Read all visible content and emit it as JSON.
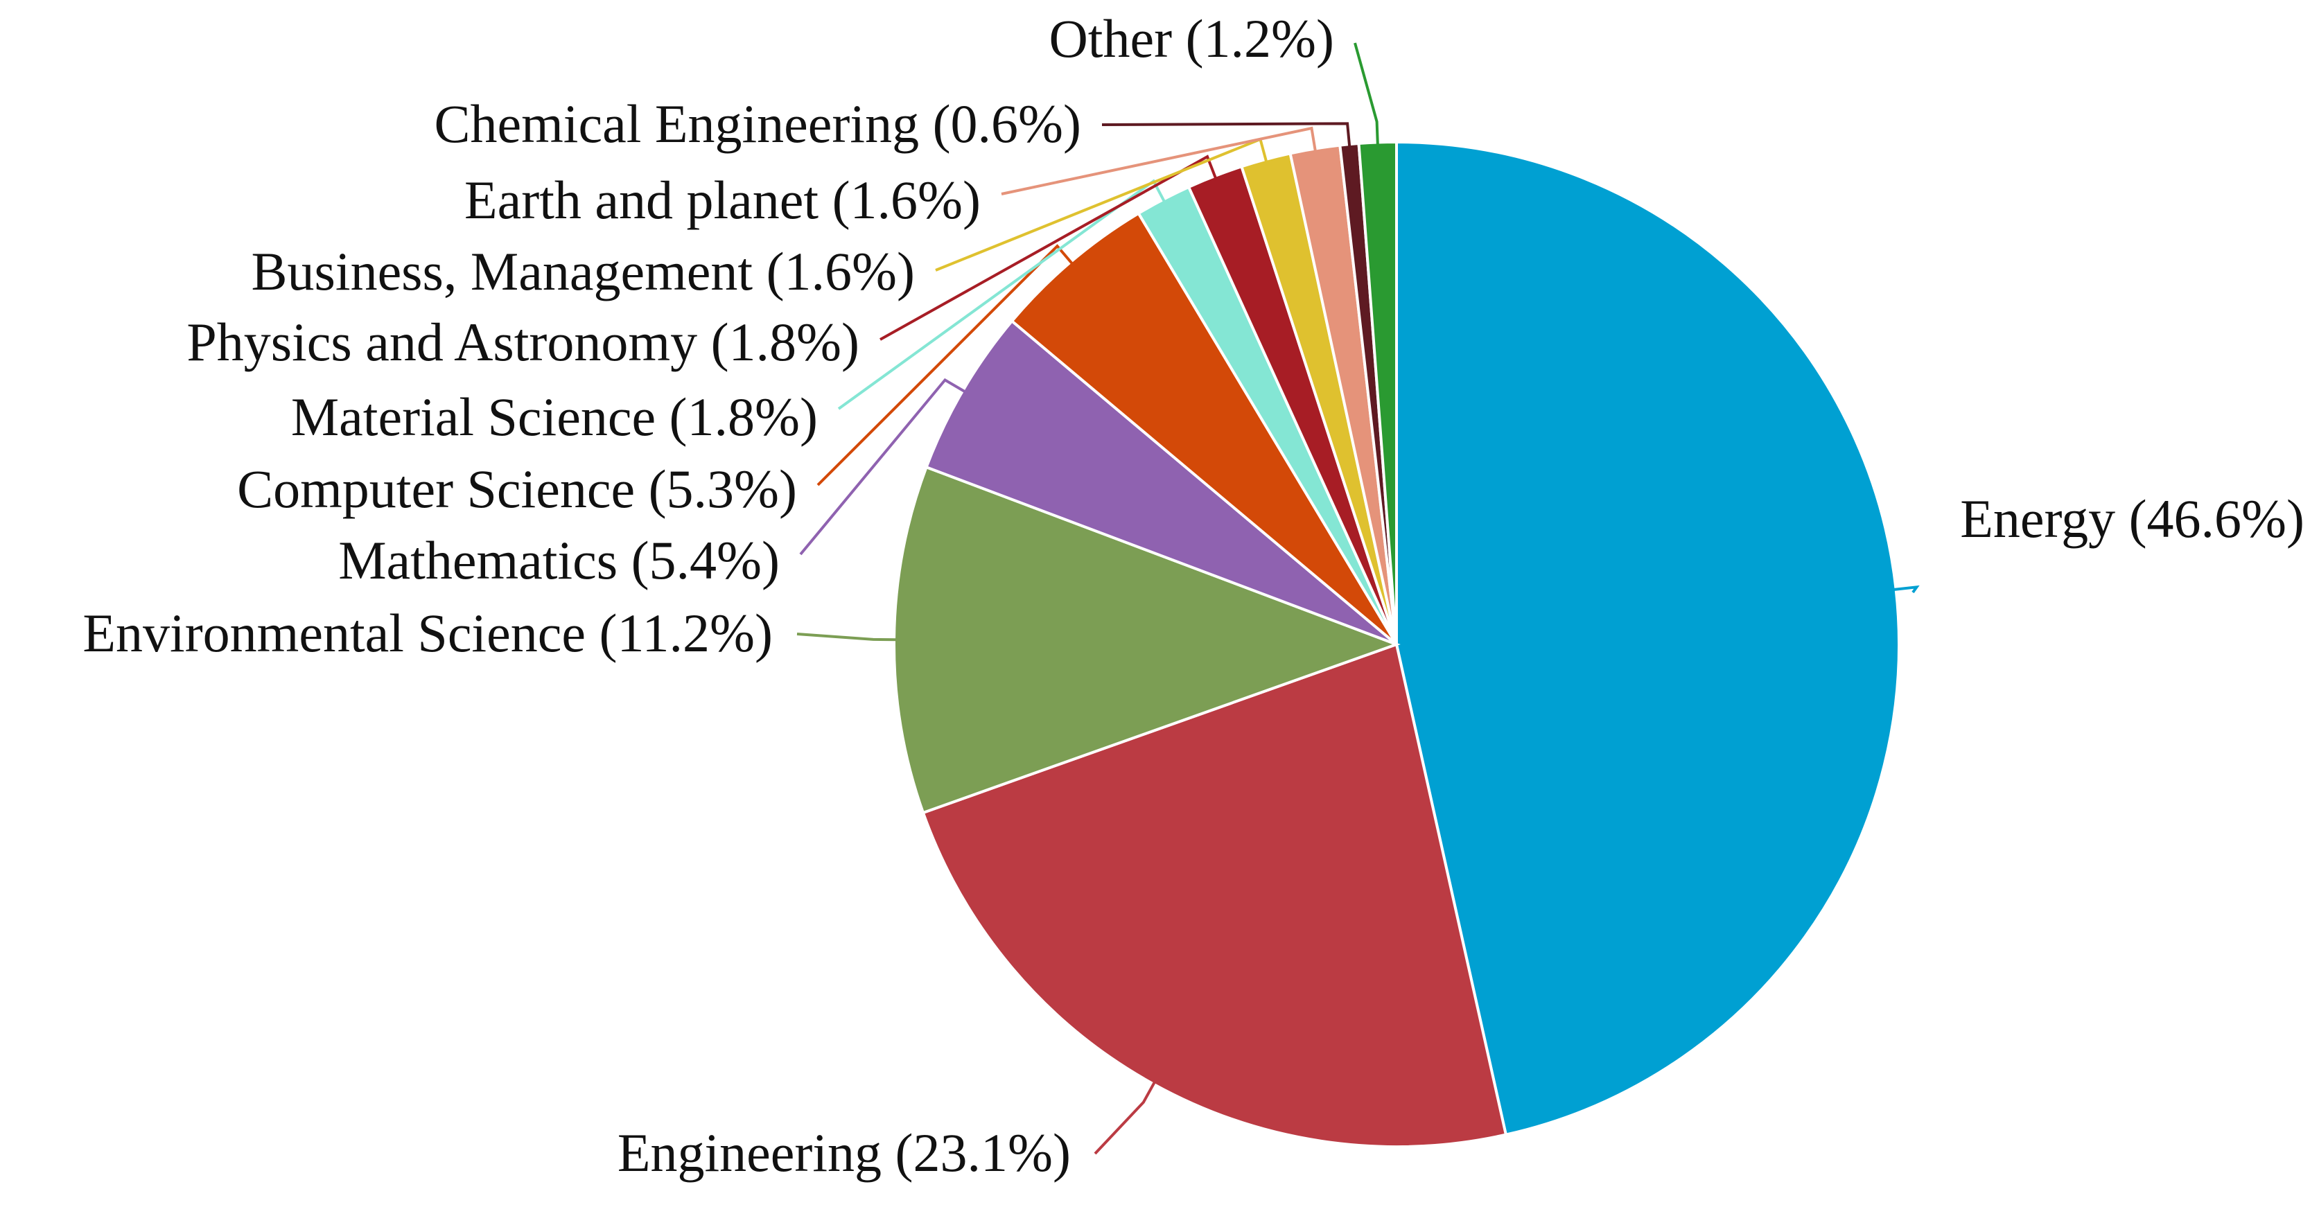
{
  "chart_data": {
    "type": "pie",
    "title": "",
    "start": "12 o'clock",
    "direction": "clockwise",
    "legend": "none (labels with leader lines)",
    "slices": [
      {
        "label": "Energy (46.6%)",
        "value": 46.6,
        "color": "#00a0d2"
      },
      {
        "label": "Engineering (23.1%)",
        "value": 23.1,
        "color": "#bb3b43"
      },
      {
        "label": "Environmental Science (11.2%)",
        "value": 11.2,
        "color": "#7c9e54"
      },
      {
        "label": "Mathematics (5.4%)",
        "value": 5.4,
        "color": "#8f62b0"
      },
      {
        "label": "Computer Science (5.3%)",
        "value": 5.3,
        "color": "#d34908"
      },
      {
        "label": "Material Science (1.8%)",
        "value": 1.8,
        "color": "#84e6d4"
      },
      {
        "label": "Physics and Astronomy (1.8%)",
        "value": 1.8,
        "color": "#a71d25"
      },
      {
        "label": "Business, Management (1.6%)",
        "value": 1.6,
        "color": "#dfc12f"
      },
      {
        "label": "Earth and planet (1.6%)",
        "value": 1.6,
        "color": "#e5937a"
      },
      {
        "label": "Chemical Engineering (0.6%)",
        "value": 0.6,
        "color": "#5e1a22"
      },
      {
        "label": "Other (1.2%)",
        "value": 1.2,
        "color": "#2a9a31"
      }
    ]
  }
}
